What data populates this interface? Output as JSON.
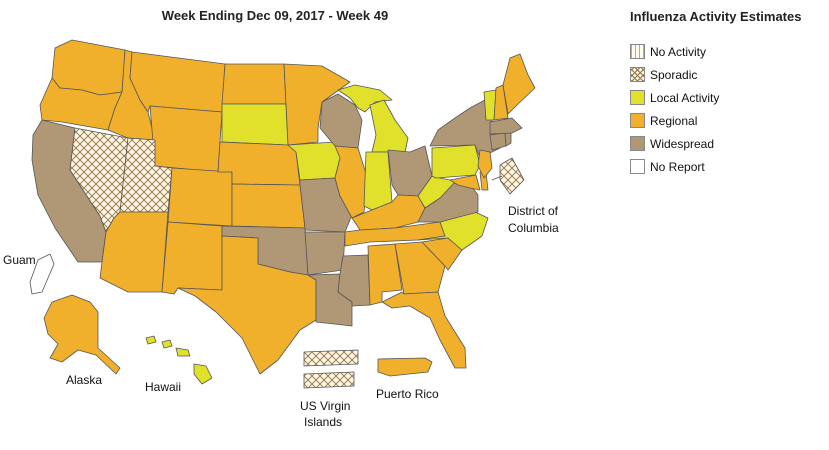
{
  "title": "Week Ending Dec 09, 2017 - Week 49",
  "legend": {
    "title": "Influenza Activity Estimates",
    "items": [
      {
        "key": "no_activity",
        "label": "No Activity"
      },
      {
        "key": "sporadic",
        "label": "Sporadic"
      },
      {
        "key": "local",
        "label": "Local Activity"
      },
      {
        "key": "regional",
        "label": "Regional"
      },
      {
        "key": "widespread",
        "label": "Widespread"
      },
      {
        "key": "no_report",
        "label": "No Report"
      }
    ]
  },
  "colors": {
    "regional": "#f0b02c",
    "widespread": "#b09877",
    "local": "#e1e12c",
    "sporadic_bg": "#fdf5e2",
    "sporadic_line": "#8f7448",
    "no_activity_bg": "#fffaf0",
    "no_activity_line": "#c6a776",
    "no_report": "#ffffff"
  },
  "labels": {
    "guam": "Guam",
    "alaska": "Alaska",
    "hawaii": "Hawaii",
    "usvi_line1": "US Virgin",
    "usvi_line2": "Islands",
    "puerto_rico": "Puerto Rico",
    "dc_line1": "District of",
    "dc_line2": "Columbia"
  },
  "states": {
    "WA": "regional",
    "OR": "regional",
    "CA": "widespread",
    "NV": "sporadic",
    "ID": "regional",
    "MT": "regional",
    "WY": "regional",
    "UT": "sporadic",
    "AZ": "regional",
    "NM": "regional",
    "CO": "regional",
    "ND": "regional",
    "SD": "local",
    "NE": "regional",
    "KS": "regional",
    "OK": "widespread",
    "TX": "regional",
    "MN": "regional",
    "IA": "local",
    "MO": "widespread",
    "AR": "widespread",
    "LA": "widespread",
    "WI": "widespread",
    "IL": "regional",
    "MI": "local",
    "IN": "local",
    "OH": "widespread",
    "KY": "regional",
    "TN": "regional",
    "MS": "widespread",
    "AL": "regional",
    "GA": "regional",
    "FL": "regional",
    "SC": "regional",
    "NC": "local",
    "VA": "widespread",
    "WV": "local",
    "PA": "local",
    "NY": "widespread",
    "VT": "local",
    "NH": "regional",
    "ME": "regional",
    "MA": "widespread",
    "CT": "widespread",
    "RI": "widespread",
    "NJ": "regional",
    "DE": "regional",
    "MD": "regional",
    "AK": "regional",
    "HI": "local",
    "PR": "regional",
    "USVI": "sporadic",
    "GU": "no_report",
    "DC": "sporadic"
  }
}
